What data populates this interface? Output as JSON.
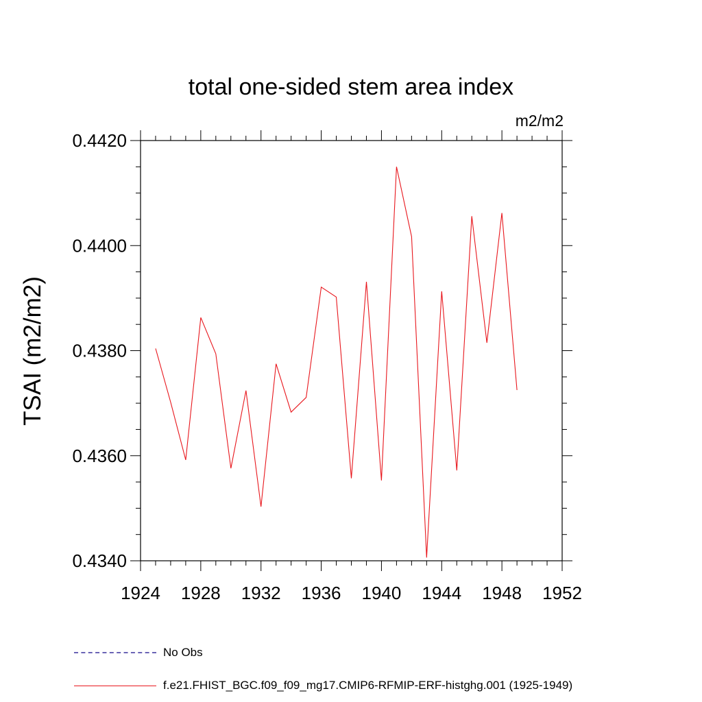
{
  "chart_data": {
    "type": "line",
    "title": "total one-sided stem area index",
    "units": "m2/m2",
    "ylabel": "TSAI  (m2/m2)",
    "xlabel": "",
    "xlim": [
      1924,
      1952
    ],
    "ylim": [
      0.434,
      0.442
    ],
    "xticks": [
      1924,
      1928,
      1932,
      1936,
      1940,
      1944,
      1948,
      1952
    ],
    "yticks": [
      "0.4340",
      "0.4360",
      "0.4380",
      "0.4400",
      "0.4420"
    ],
    "grid": false,
    "legend_position": "bottom",
    "series": [
      {
        "name": "f.e21.FHIST_BGC.f09_f09_mg17.CMIP6-RFMIP-ERF-histghg.001 (1925-1949)",
        "color": "#e8161c",
        "x": [
          1925,
          1926,
          1927,
          1928,
          1929,
          1930,
          1931,
          1932,
          1933,
          1934,
          1935,
          1936,
          1937,
          1938,
          1939,
          1940,
          1941,
          1942,
          1943,
          1944,
          1945,
          1946,
          1947,
          1948,
          1949
        ],
        "values": [
          0.43804,
          0.43702,
          0.43592,
          0.43863,
          0.43794,
          0.43576,
          0.43724,
          0.43503,
          0.43775,
          0.43683,
          0.43711,
          0.43921,
          0.43902,
          0.43557,
          0.43931,
          0.43553,
          0.4415,
          0.44017,
          0.43406,
          0.43913,
          0.43572,
          0.44056,
          0.43815,
          0.44062,
          0.43725
        ]
      }
    ],
    "legend": [
      {
        "label": "No Obs",
        "style": "dashed",
        "color": "#6a63b5"
      },
      {
        "label": "f.e21.FHIST_BGC.f09_f09_mg17.CMIP6-RFMIP-ERF-histghg.001 (1925-1949)",
        "style": "solid",
        "color": "#e8161c"
      }
    ]
  }
}
